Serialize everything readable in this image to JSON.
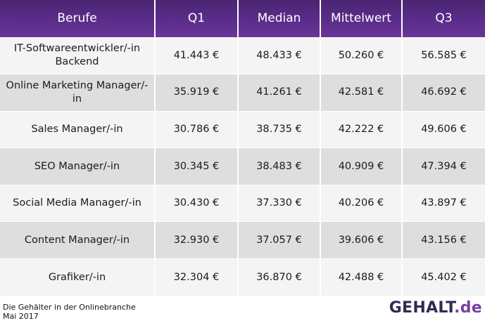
{
  "chart_data": {
    "type": "table",
    "columns": [
      "Berufe",
      "Q1",
      "Median",
      "Mittelwert",
      "Q3"
    ],
    "rows": [
      {
        "beruf": "IT-Softwareentwickler/-in Backend",
        "q1": "41.443 €",
        "median": "48.433 €",
        "mittelwert": "50.260 €",
        "q3": "56.585 €"
      },
      {
        "beruf": "Online Marketing Manager/-in",
        "q1": "35.919 €",
        "median": "41.261 €",
        "mittelwert": "42.581 €",
        "q3": "46.692 €"
      },
      {
        "beruf": "Sales Manager/-in",
        "q1": "30.786 €",
        "median": "38.735 €",
        "mittelwert": "42.222 €",
        "q3": "49.606 €"
      },
      {
        "beruf": "SEO Manager/-in",
        "q1": "30.345 €",
        "median": "38.483 €",
        "mittelwert": "40.909 €",
        "q3": "47.394 €"
      },
      {
        "beruf": "Social Media Manager/-in",
        "q1": "30.430 €",
        "median": "37.330 €",
        "mittelwert": "40.206 €",
        "q3": "43.897 €"
      },
      {
        "beruf": "Content Manager/-in",
        "q1": "32.930 €",
        "median": "37.057 €",
        "mittelwert": "39.606 €",
        "q3": "43.156 €"
      },
      {
        "beruf": "Grafiker/-in",
        "q1": "32.304 €",
        "median": "36.870 €",
        "mittelwert": "42.488 €",
        "q3": "45.402 €"
      }
    ]
  },
  "footer": {
    "caption": "Die Gehälter in der Onlinebranche",
    "date": "Mai 2017"
  },
  "brand": {
    "name_part1": "GEHALT",
    "name_part2": ".de"
  },
  "colors": {
    "header_bg": "#5b2d8a",
    "row_light": "#f4f4f4",
    "row_dark": "#dedede",
    "brand_dark": "#2d2d52",
    "brand_accent": "#7a3fa8"
  }
}
